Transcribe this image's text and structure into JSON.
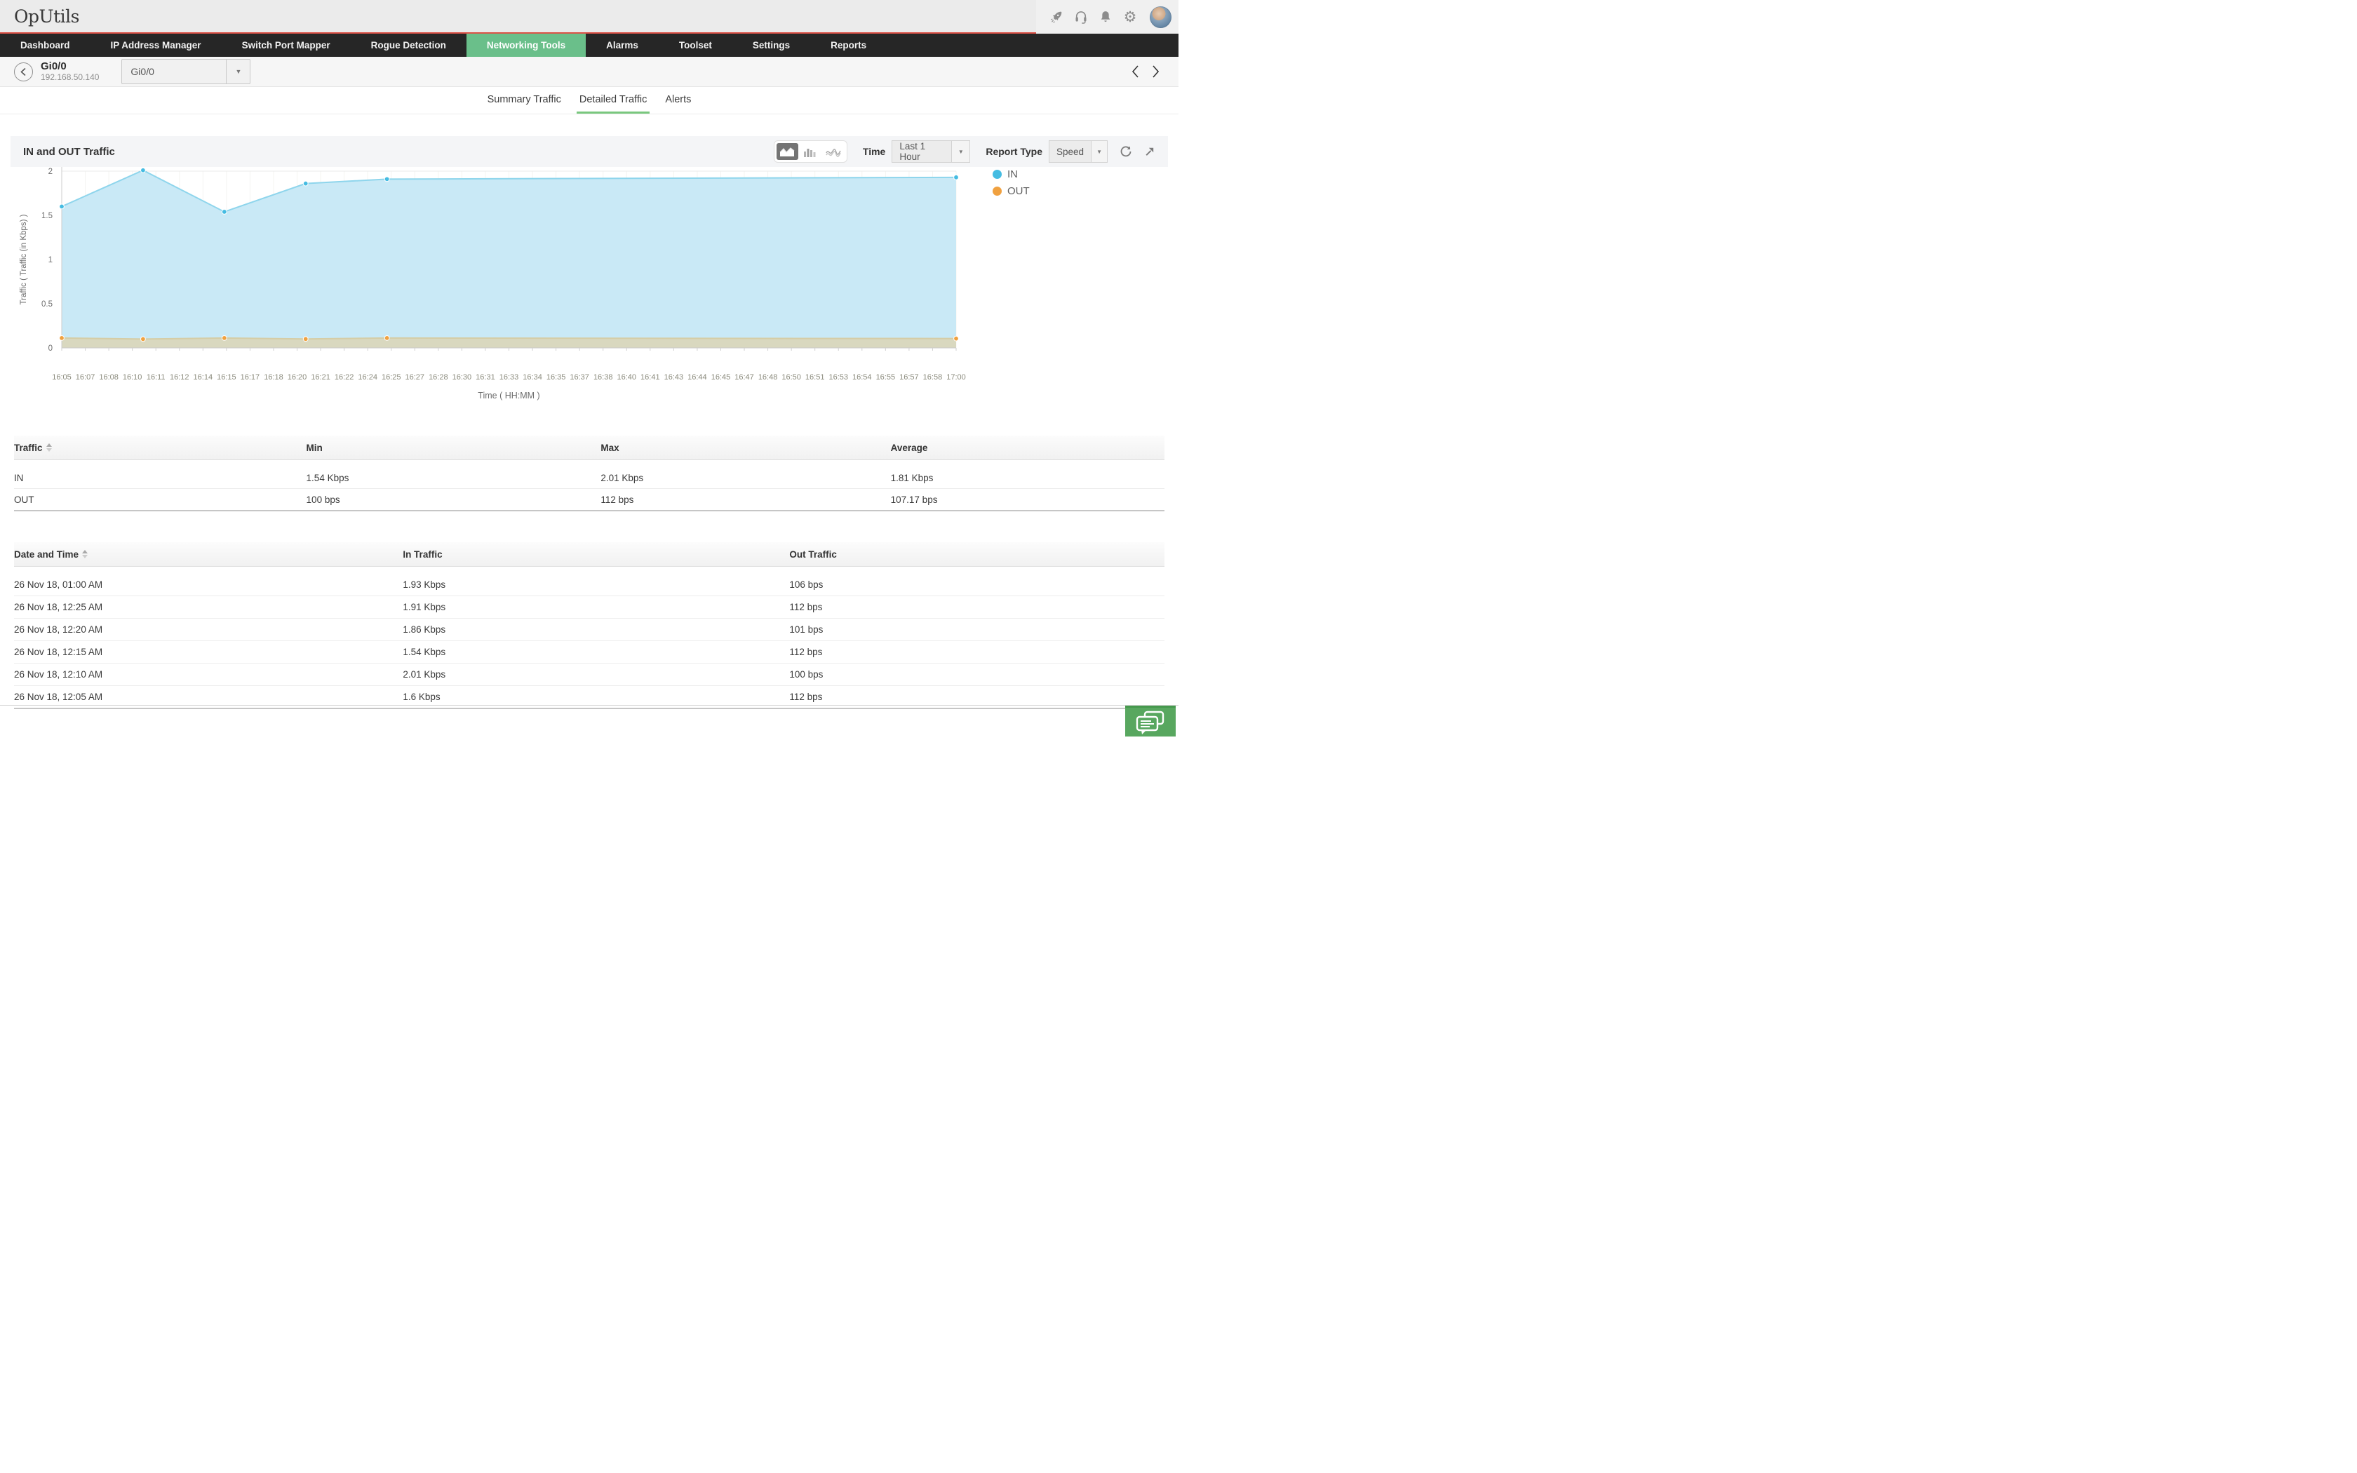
{
  "topbar": {
    "logo": "OpUtils",
    "icons": [
      "rocket-icon",
      "headset-icon",
      "bell-icon",
      "gear-icon",
      "user-avatar"
    ]
  },
  "navbar": {
    "items": [
      {
        "label": "Dashboard",
        "active": false
      },
      {
        "label": "IP Address Manager",
        "active": false
      },
      {
        "label": "Switch Port Mapper",
        "active": false
      },
      {
        "label": "Rogue Detection",
        "active": false
      },
      {
        "label": "Networking Tools",
        "active": true
      },
      {
        "label": "Alarms",
        "active": false
      },
      {
        "label": "Toolset",
        "active": false
      },
      {
        "label": "Settings",
        "active": false
      },
      {
        "label": "Reports",
        "active": false
      }
    ]
  },
  "header": {
    "title": "Gi0/0",
    "subtitle": "192.168.50.140",
    "interface_select": {
      "value": "Gi0/0"
    }
  },
  "tabs": [
    {
      "label": "Summary Traffic",
      "active": false
    },
    {
      "label": "Detailed Traffic",
      "active": true
    },
    {
      "label": "Alerts",
      "active": false
    }
  ],
  "panel": {
    "title": "IN and OUT Traffic",
    "chart_types": [
      "area",
      "bar",
      "line"
    ],
    "active_chart_type": "area",
    "time_label": "Time",
    "time_value": "Last 1 Hour",
    "report_type_label": "Report Type",
    "report_type_value": "Speed"
  },
  "chart_data": {
    "type": "area",
    "title": "IN and OUT Traffic",
    "xlabel": "Time ( HH:MM )",
    "ylabel": "Traffic ( Traffic (in Kbps) )",
    "ylim": [
      0,
      2
    ],
    "yticks": [
      "0",
      "0.5",
      "1",
      "1.5",
      "2"
    ],
    "x_tick_labels": [
      "16:05",
      "16:07",
      "16:08",
      "16:10",
      "16:11",
      "16:12",
      "16:14",
      "16:15",
      "16:17",
      "16:18",
      "16:20",
      "16:21",
      "16:22",
      "16:24",
      "16:25",
      "16:27",
      "16:28",
      "16:30",
      "16:31",
      "16:33",
      "16:34",
      "16:35",
      "16:37",
      "16:38",
      "16:40",
      "16:41",
      "16:43",
      "16:44",
      "16:45",
      "16:47",
      "16:48",
      "16:50",
      "16:51",
      "16:53",
      "16:54",
      "16:55",
      "16:57",
      "16:58",
      "17:00"
    ],
    "x_range_minutes": [
      5,
      60
    ],
    "grid": true,
    "legend_position": "right",
    "series": [
      {
        "name": "IN",
        "color": "#45bce2",
        "line": "#8ed5ec",
        "fill": "#c9e9f6",
        "points": [
          {
            "time": "16:05",
            "minute": 5,
            "value": 1.6
          },
          {
            "time": "16:10",
            "minute": 10,
            "value": 2.01
          },
          {
            "time": "16:15",
            "minute": 15,
            "value": 1.54
          },
          {
            "time": "16:20",
            "minute": 20,
            "value": 1.86
          },
          {
            "time": "16:25",
            "minute": 25,
            "value": 1.91
          },
          {
            "time": "17:00",
            "minute": 60,
            "value": 1.93
          }
        ]
      },
      {
        "name": "OUT",
        "color": "#f0a140",
        "line": "#d5cda6",
        "fill": "#d9d8bf",
        "points": [
          {
            "time": "16:05",
            "minute": 5,
            "value": 0.112
          },
          {
            "time": "16:10",
            "minute": 10,
            "value": 0.1
          },
          {
            "time": "16:15",
            "minute": 15,
            "value": 0.112
          },
          {
            "time": "16:20",
            "minute": 20,
            "value": 0.101
          },
          {
            "time": "16:25",
            "minute": 25,
            "value": 0.112
          },
          {
            "time": "17:00",
            "minute": 60,
            "value": 0.106
          }
        ]
      }
    ],
    "legend": [
      {
        "label": "IN",
        "color": "#45bce2"
      },
      {
        "label": "OUT",
        "color": "#f0a140"
      }
    ]
  },
  "summary_table": {
    "headers": [
      "Traffic",
      "Min",
      "Max",
      "Average"
    ],
    "rows": [
      [
        "IN",
        "1.54 Kbps",
        "2.01 Kbps",
        "1.81 Kbps"
      ],
      [
        "OUT",
        "100 bps",
        "112 bps",
        "107.17 bps"
      ]
    ]
  },
  "detail_table": {
    "headers": [
      "Date and Time",
      "In Traffic",
      "Out Traffic"
    ],
    "rows": [
      [
        "26 Nov 18, 01:00 AM",
        "1.93 Kbps",
        "106 bps"
      ],
      [
        "26 Nov 18, 12:25 AM",
        "1.91 Kbps",
        "112 bps"
      ],
      [
        "26 Nov 18, 12:20 AM",
        "1.86 Kbps",
        "101 bps"
      ],
      [
        "26 Nov 18, 12:15 AM",
        "1.54 Kbps",
        "112 bps"
      ],
      [
        "26 Nov 18, 12:10 AM",
        "2.01 Kbps",
        "100 bps"
      ],
      [
        "26 Nov 18, 12:05 AM",
        "1.6 Kbps",
        "112 bps"
      ]
    ]
  },
  "colors": {
    "nav_active": "#6abf8a",
    "tab_underline": "#79c77e",
    "topbar_accent": "#dd5147",
    "in_series": "#45bce2",
    "out_series": "#f0a140",
    "chat_button": "#58a75f"
  }
}
